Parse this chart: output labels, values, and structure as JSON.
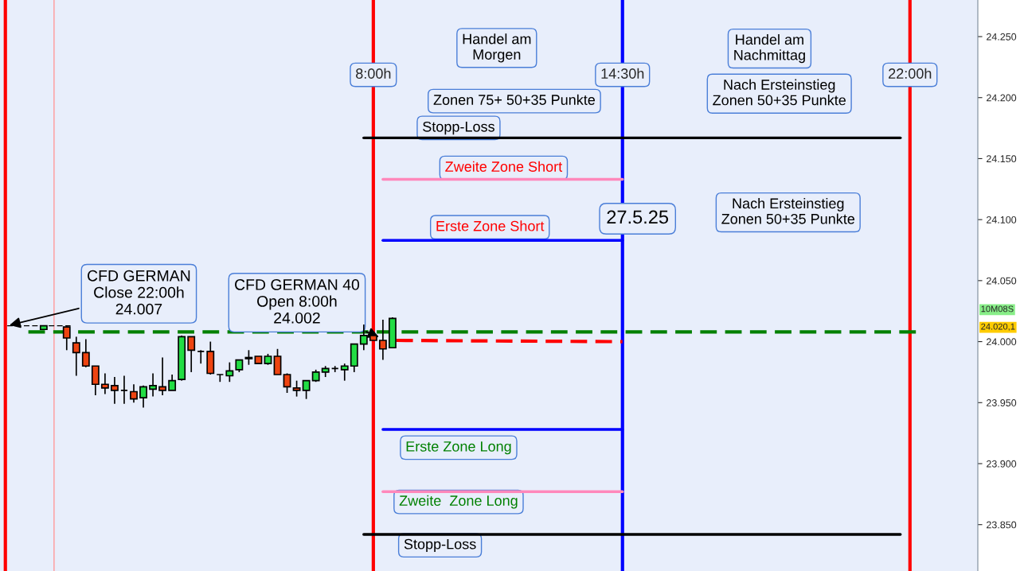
{
  "chart_data": {
    "type": "candlestick",
    "x": [
      -0.6,
      0,
      0.25,
      0.5,
      0.75,
      1,
      1.25,
      1.5,
      1.75,
      2,
      2.25,
      2.5,
      2.75,
      3,
      3.25,
      3.5,
      3.75,
      4,
      4.25,
      4.5,
      4.75,
      5,
      5.25,
      5.5,
      5.75,
      6,
      6.25,
      6.5,
      6.75,
      7,
      7.25,
      7.5,
      7.75,
      8,
      8.25,
      8.5
    ],
    "ohlc": [
      [
        24010,
        24013,
        24010,
        24013
      ],
      [
        24012,
        24013,
        23993,
        24003
      ],
      [
        23999,
        24004,
        23972,
        23991
      ],
      [
        23991,
        24002,
        23979,
        23980
      ],
      [
        23980,
        23980,
        23956,
        23965
      ],
      [
        23965,
        23974,
        23957,
        23962
      ],
      [
        23964,
        23971,
        23949,
        23960
      ],
      [
        23960,
        23972,
        23949,
        23960
      ],
      [
        23959,
        23965,
        23950,
        23953
      ],
      [
        23954,
        23964,
        23946,
        23963
      ],
      [
        23961,
        23974,
        23955,
        23964
      ],
      [
        23963,
        23987,
        23956,
        23960
      ],
      [
        23960,
        23973,
        23960,
        23968
      ],
      [
        23969,
        24005,
        23968,
        24004
      ],
      [
        24004,
        24004,
        23975,
        23993
      ],
      [
        23992,
        23993,
        23982,
        23992
      ],
      [
        23992,
        24000,
        23973,
        23974
      ],
      [
        23973,
        23973,
        23967,
        23973
      ],
      [
        23972,
        23983,
        23967,
        23976
      ],
      [
        23977,
        23985,
        23975,
        23985
      ],
      [
        23986,
        23993,
        23981,
        23987
      ],
      [
        23988,
        23988,
        23982,
        23982
      ],
      [
        23982,
        23990,
        23981,
        23988
      ],
      [
        23988,
        23994,
        23973,
        23973
      ],
      [
        23973,
        23974,
        23958,
        23963
      ],
      [
        23962,
        23968,
        23955,
        23960
      ],
      [
        23960,
        23968,
        23953,
        23968
      ],
      [
        23968,
        23977,
        23967,
        23975
      ],
      [
        23975,
        23980,
        23971,
        23978
      ],
      [
        23978,
        23980,
        23975,
        23978
      ],
      [
        23977,
        23982,
        23968,
        23980
      ],
      [
        23980,
        23998,
        23975,
        23998
      ],
      [
        23998,
        24014,
        23993,
        24005
      ],
      [
        24005,
        24006,
        24001,
        24001
      ],
      [
        24001,
        24018,
        23985,
        23994
      ],
      [
        23995,
        24020,
        23995,
        24019
      ]
    ],
    "colors": [
      "#22dd44",
      "#ee4411",
      "#ee4411",
      "#ee4411",
      "#ee4411",
      "#ee4411",
      "#ee4411",
      "#000000",
      "#ee4411",
      "#22dd44",
      "#22dd44",
      "#ee4411",
      "#22dd44",
      "#22dd44",
      "#ee4411",
      "#000000",
      "#ee4411",
      "#000000",
      "#22dd44",
      "#22dd44",
      "#22dd44",
      "#ee4411",
      "#22dd44",
      "#ee4411",
      "#ee4411",
      "#ee4411",
      "#22dd44",
      "#22dd44",
      "#22dd44",
      "#000000",
      "#22dd44",
      "#22dd44",
      "#22dd44",
      "#ee4411",
      "#ee4411",
      "#22dd44"
    ],
    "series": [
      {
        "type": "line",
        "color": "#000000",
        "x": [
          7.75,
          21.75
        ],
        "values": [
          24167,
          24167
        ]
      },
      {
        "type": "line",
        "color": "#ff88bb",
        "x": [
          8.25,
          14.5
        ],
        "values": [
          24133,
          24133
        ]
      },
      {
        "type": "line",
        "color": "#0000ff",
        "x": [
          8.25,
          14.5
        ],
        "values": [
          24083,
          24083
        ]
      },
      {
        "type": "line",
        "color": "#008000",
        "x": [
          -1,
          22.25
        ],
        "values": [
          24008,
          24008
        ],
        "line_style": "dashed"
      },
      {
        "type": "line",
        "color": "#ff0000",
        "x": [
          8.6,
          14.5
        ],
        "values": [
          24001,
          24000
        ],
        "line_style": "dashed"
      },
      {
        "type": "line",
        "color": "#0000ff",
        "x": [
          8.25,
          14.5
        ],
        "values": [
          23928,
          23928
        ]
      },
      {
        "type": "line",
        "color": "#ff88bb",
        "x": [
          8.25,
          14.5
        ],
        "values": [
          23877,
          23877
        ]
      },
      {
        "type": "line",
        "color": "#000000",
        "x": [
          7.75,
          21.75
        ],
        "values": [
          23842,
          23842
        ]
      },
      {
        "type": "line",
        "color": "#000000",
        "x": [
          -1.55,
          0.1
        ],
        "values": [
          24013,
          24013
        ],
        "line_style": "dashed"
      }
    ],
    "ref_lines": [
      {
        "axis": "x",
        "value": -1.6,
        "color": "#ff0000"
      },
      {
        "axis": "x",
        "value": -0.33,
        "color": "#ff9999"
      },
      {
        "axis": "x",
        "value": 8,
        "label": "8:00h",
        "color": "#ff0000"
      },
      {
        "axis": "x",
        "value": 14.5,
        "label": "14:30h",
        "color": "#0000ff"
      },
      {
        "axis": "x",
        "value": 22,
        "label": "22:00h",
        "color": "#ff0000"
      }
    ],
    "annotations": [
      "Handel am\nMorgen",
      "Zonen 75+ 50+35 Punkte",
      "Handel am\nNachmittag",
      "Nach Ersteinstieg\nZonen 50+35 Punkte",
      "Stopp-Loss",
      "Zweite Zone Short",
      "Erste Zone Short",
      "27.5.25",
      "Nach Ersteinstieg\nZonen 50+35 Punkte",
      "Erste Zone Long",
      "Zweite  Zone Long",
      "Stopp-Loss",
      {
        "text": "CFD GERMAN\nClose 22:00h\n24.007",
        "x": -1.55,
        "y": 24013
      },
      {
        "text": "CFD GERMAN 40\nOpen 8:00h\n24.002",
        "x": 8.2,
        "y": 24003
      },
      "10M08S",
      "24.020,1"
    ],
    "xlim": [
      -1.74,
      23.77
    ],
    "ylim": [
      23812,
      24280
    ],
    "yticks": [
      {
        "value": 23850,
        "label": "23.850"
      },
      {
        "value": 23900,
        "label": "23.900"
      },
      {
        "value": 23950,
        "label": "23.950"
      },
      {
        "value": 24000,
        "label": "24.000"
      },
      {
        "value": 24050,
        "label": "24.050"
      },
      {
        "value": 24100,
        "label": "24.100"
      },
      {
        "value": 24150,
        "label": "24.150"
      },
      {
        "value": 24200,
        "label": "24.200"
      },
      {
        "value": 24250,
        "label": "24.250"
      }
    ],
    "tick_labels": "y",
    "grid": false,
    "legend": false
  }
}
